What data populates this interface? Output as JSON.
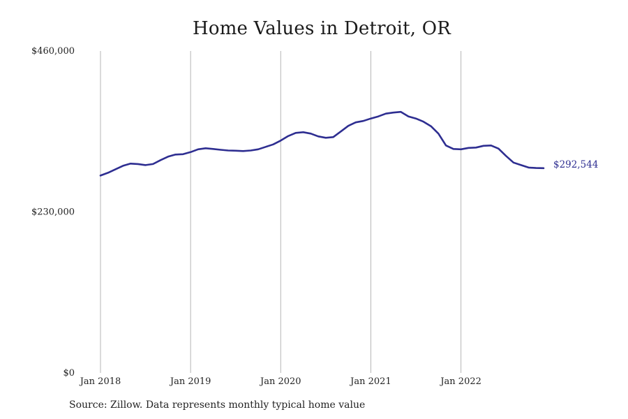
{
  "chart_data": {
    "type": "line",
    "title": "Home Values in Detroit, OR",
    "xlabel": "",
    "ylabel": "",
    "source": "Source: Zillow. Data represents monthly typical home value",
    "ylim": [
      0,
      460000
    ],
    "y_ticks": [
      {
        "value": 0,
        "label": "$0"
      },
      {
        "value": 230000,
        "label": "$230,000"
      },
      {
        "value": 460000,
        "label": "$460,000"
      }
    ],
    "x_ticks": [
      {
        "date": "2018-01",
        "label": "Jan 2018"
      },
      {
        "date": "2019-01",
        "label": "Jan 2019"
      },
      {
        "date": "2020-01",
        "label": "Jan 2020"
      },
      {
        "date": "2021-01",
        "label": "Jan 2021"
      },
      {
        "date": "2022-01",
        "label": "Jan 2022"
      }
    ],
    "grid": {
      "vertical": true,
      "horizontal": false
    },
    "line_color": "#2e2e91",
    "end_label": "$292,544",
    "series": [
      {
        "x": [
          "2018-01",
          "2018-02",
          "2018-03",
          "2018-04",
          "2018-05",
          "2018-06",
          "2018-07",
          "2018-08",
          "2018-09",
          "2018-10",
          "2018-11",
          "2018-12",
          "2019-01",
          "2019-02",
          "2019-03",
          "2019-04",
          "2019-05",
          "2019-06",
          "2019-07",
          "2019-08",
          "2019-09",
          "2019-10",
          "2019-11",
          "2019-12",
          "2020-01",
          "2020-02",
          "2020-03",
          "2020-04",
          "2020-05",
          "2020-06",
          "2020-07",
          "2020-08",
          "2020-09",
          "2020-10",
          "2020-11",
          "2020-12",
          "2021-01",
          "2021-02",
          "2021-03",
          "2021-04",
          "2021-05",
          "2021-06",
          "2021-07",
          "2021-08",
          "2021-09",
          "2021-10",
          "2021-11",
          "2021-12",
          "2022-01",
          "2022-02",
          "2022-03",
          "2022-04",
          "2022-05",
          "2022-06",
          "2022-07",
          "2022-08",
          "2022-09",
          "2022-10",
          "2022-11",
          "2022-12"
        ],
        "values": [
          282000,
          286000,
          291000,
          296000,
          299000,
          298500,
          297000,
          298500,
          304000,
          309000,
          312000,
          312500,
          315500,
          319500,
          321000,
          320000,
          318800,
          317800,
          317500,
          317000,
          317800,
          319500,
          323000,
          326500,
          332000,
          338500,
          343000,
          344000,
          342000,
          338000,
          336000,
          337000,
          345000,
          353000,
          358000,
          360000,
          363500,
          366500,
          370500,
          372000,
          373000,
          366500,
          363500,
          359000,
          352500,
          342000,
          325000,
          320000,
          319500,
          321500,
          322000,
          324500,
          325000,
          320500,
          310000,
          300500,
          297000,
          293500,
          292800,
          292544
        ]
      }
    ]
  }
}
